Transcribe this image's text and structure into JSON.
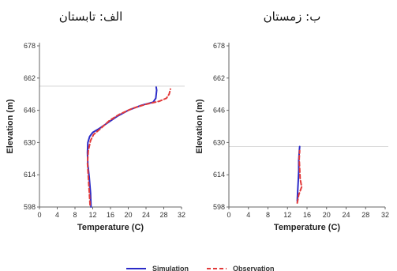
{
  "chart_data": [
    {
      "type": "line",
      "title": "الف: تابستان",
      "xlabel": "Temperature (C)",
      "ylabel": "Elevation (m)",
      "xlim": [
        0,
        32
      ],
      "ylim": [
        598,
        678
      ],
      "xticks": [
        0,
        4,
        8,
        12,
        16,
        20,
        24,
        28,
        32
      ],
      "yticks": [
        598,
        614,
        630,
        646,
        662,
        678
      ],
      "reference_line_y": 658,
      "series": [
        {
          "name": "Simulation",
          "color": "#2b2bc8",
          "dash": "solid",
          "points": [
            [
              11.6,
              598
            ],
            [
              11.5,
              605
            ],
            [
              11.2,
              613
            ],
            [
              10.9,
              619
            ],
            [
              10.8,
              625
            ],
            [
              10.9,
              630
            ],
            [
              11.3,
              633
            ],
            [
              12.0,
              635
            ],
            [
              13.5,
              637
            ],
            [
              15.5,
              640
            ],
            [
              17.5,
              643
            ],
            [
              20,
              646
            ],
            [
              23,
              648.5
            ],
            [
              25.6,
              650
            ],
            [
              26.2,
              652
            ],
            [
              26.4,
              656
            ],
            [
              26.3,
              657.5
            ]
          ]
        },
        {
          "name": "Observation",
          "color": "#e23a3a",
          "dash": "dashed",
          "points": [
            [
              11.4,
              599
            ],
            [
              11.2,
              606
            ],
            [
              11.0,
              613
            ],
            [
              10.8,
              620
            ],
            [
              11.0,
              626
            ],
            [
              11.5,
              631
            ],
            [
              12.2,
              634
            ],
            [
              13.8,
              637
            ],
            [
              15.8,
              641
            ],
            [
              18,
              644
            ],
            [
              21,
              647
            ],
            [
              24,
              649
            ],
            [
              27,
              650.5
            ],
            [
              28.6,
              652
            ],
            [
              29.2,
              654
            ],
            [
              29.5,
              656.5
            ]
          ]
        }
      ]
    },
    {
      "type": "line",
      "title": "ب: زمستان",
      "xlabel": "Temperature (C)",
      "ylabel": "Elevation (m)",
      "xlim": [
        0,
        32
      ],
      "ylim": [
        598,
        678
      ],
      "xticks": [
        0,
        4,
        8,
        12,
        16,
        20,
        24,
        28,
        32
      ],
      "yticks": [
        598,
        614,
        630,
        646,
        662,
        678
      ],
      "reference_line_y": 628,
      "series": [
        {
          "name": "Simulation",
          "color": "#2b2bc8",
          "dash": "solid",
          "points": [
            [
              14.0,
              601
            ],
            [
              14.1,
              606
            ],
            [
              14.2,
              611
            ],
            [
              14.3,
              616
            ],
            [
              14.3,
              621
            ],
            [
              14.4,
              625
            ],
            [
              14.5,
              628
            ]
          ]
        },
        {
          "name": "Observation",
          "color": "#e23a3a",
          "dash": "dashed",
          "points": [
            [
              14.0,
              600
            ],
            [
              14.3,
              604
            ],
            [
              14.9,
              608
            ],
            [
              14.6,
              612
            ],
            [
              14.5,
              617
            ],
            [
              14.4,
              622
            ],
            [
              14.5,
              626
            ]
          ]
        }
      ]
    }
  ],
  "legend": {
    "placement": "bottom",
    "items": [
      {
        "label": "Simulation",
        "color": "#2b2bc8",
        "dash": "solid"
      },
      {
        "label": "Observation",
        "color": "#e23a3a",
        "dash": "dashed"
      }
    ]
  }
}
